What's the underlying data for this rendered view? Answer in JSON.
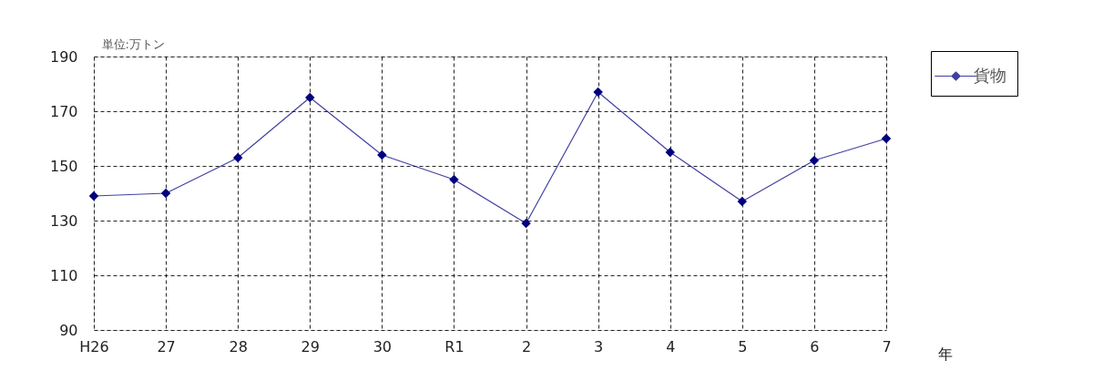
{
  "chart_data": {
    "type": "line",
    "ylabel": "単位:万トン",
    "xlabel": "年",
    "categories": [
      "H26",
      "27",
      "28",
      "29",
      "30",
      "R1",
      "2",
      "3",
      "4",
      "5",
      "6",
      "7"
    ],
    "series": [
      {
        "name": "貨物",
        "color": "#000080",
        "values": [
          139,
          140,
          153,
          175,
          154,
          145,
          129,
          177,
          155,
          137,
          152,
          160
        ]
      }
    ],
    "ylim": [
      90,
      190
    ],
    "yticks": [
      90,
      110,
      130,
      150,
      170,
      190
    ],
    "grid": true,
    "legend": "top right",
    "marker": "diamond",
    "line_style": "solid"
  }
}
